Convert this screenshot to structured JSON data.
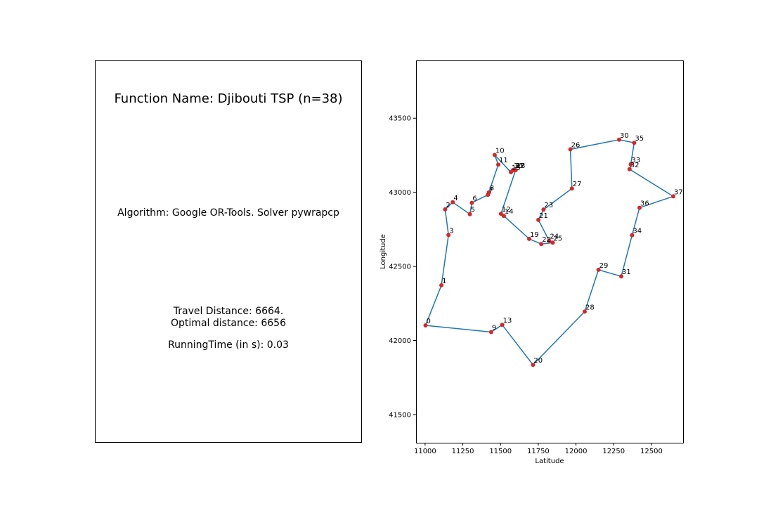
{
  "info_panel": {
    "function_name": "Function Name: Djibouti TSP (n=38)",
    "algorithm": "Algorithm: Google OR-Tools. Solver pywrapcp",
    "travel_distance": "Travel Distance: 6664.",
    "optimal_distance": "Optimal distance: 6656",
    "running_time": "RunningTime (in s): 0.03"
  },
  "colors": {
    "route_line": "#1f77b4",
    "city_point": "#d62728",
    "axes": "#000000"
  },
  "chart_data": {
    "type": "line",
    "xlabel": "Latitude",
    "ylabel": "Longitude",
    "xlim": [
      10940,
      12710
    ],
    "ylim": [
      41310,
      43890
    ],
    "xticks": [
      11000,
      11250,
      11500,
      11750,
      12000,
      12250,
      12500
    ],
    "yticks": [
      41500,
      42000,
      42500,
      43000,
      43500
    ],
    "grid": false,
    "cities": [
      {
        "id": "0",
        "x": 11003,
        "y": 42102
      },
      {
        "id": "1",
        "x": 11108,
        "y": 42373
      },
      {
        "id": "2",
        "x": 11133,
        "y": 42885
      },
      {
        "id": "3",
        "x": 11155,
        "y": 42712
      },
      {
        "id": "4",
        "x": 11183,
        "y": 42933
      },
      {
        "id": "5",
        "x": 11297,
        "y": 42853
      },
      {
        "id": "6",
        "x": 11310,
        "y": 42929
      },
      {
        "id": "7",
        "x": 11416,
        "y": 42983
      },
      {
        "id": "8",
        "x": 11423,
        "y": 43000
      },
      {
        "id": "9",
        "x": 11438,
        "y": 42057
      },
      {
        "id": "10",
        "x": 11461,
        "y": 43252
      },
      {
        "id": "11",
        "x": 11485,
        "y": 43187
      },
      {
        "id": "12",
        "x": 11503,
        "y": 42855
      },
      {
        "id": "13",
        "x": 11511,
        "y": 42106
      },
      {
        "id": "14",
        "x": 11522,
        "y": 42841
      },
      {
        "id": "15",
        "x": 11569,
        "y": 43136
      },
      {
        "id": "16",
        "x": 11583,
        "y": 43150
      },
      {
        "id": "17",
        "x": 11595,
        "y": 43149
      },
      {
        "id": "18",
        "x": 11600,
        "y": 43150
      },
      {
        "id": "19",
        "x": 11690,
        "y": 42686
      },
      {
        "id": "20",
        "x": 11715,
        "y": 41836
      },
      {
        "id": "21",
        "x": 11751,
        "y": 42814
      },
      {
        "id": "22",
        "x": 11770,
        "y": 42651
      },
      {
        "id": "23",
        "x": 11785,
        "y": 42884
      },
      {
        "id": "24",
        "x": 11822,
        "y": 42673
      },
      {
        "id": "25",
        "x": 11846,
        "y": 42660
      },
      {
        "id": "26",
        "x": 11963,
        "y": 43290
      },
      {
        "id": "27",
        "x": 11973,
        "y": 43026
      },
      {
        "id": "28",
        "x": 12058,
        "y": 42195
      },
      {
        "id": "29",
        "x": 12149,
        "y": 42477
      },
      {
        "id": "30",
        "x": 12286,
        "y": 43355
      },
      {
        "id": "31",
        "x": 12300,
        "y": 42433
      },
      {
        "id": "32",
        "x": 12355,
        "y": 43156
      },
      {
        "id": "33",
        "x": 12363,
        "y": 43189
      },
      {
        "id": "34",
        "x": 12372,
        "y": 42711
      },
      {
        "id": "35",
        "x": 12386,
        "y": 43334
      },
      {
        "id": "36",
        "x": 12421,
        "y": 42896
      },
      {
        "id": "37",
        "x": 12645,
        "y": 42973
      }
    ],
    "route": [
      "0",
      "1",
      "3",
      "2",
      "4",
      "5",
      "6",
      "7",
      "8",
      "11",
      "10",
      "15",
      "16",
      "17",
      "18",
      "12",
      "14",
      "19",
      "22",
      "25",
      "24",
      "21",
      "23",
      "27",
      "26",
      "30",
      "35",
      "33",
      "32",
      "37",
      "36",
      "34",
      "31",
      "29",
      "28",
      "20",
      "13",
      "9",
      "0"
    ]
  }
}
